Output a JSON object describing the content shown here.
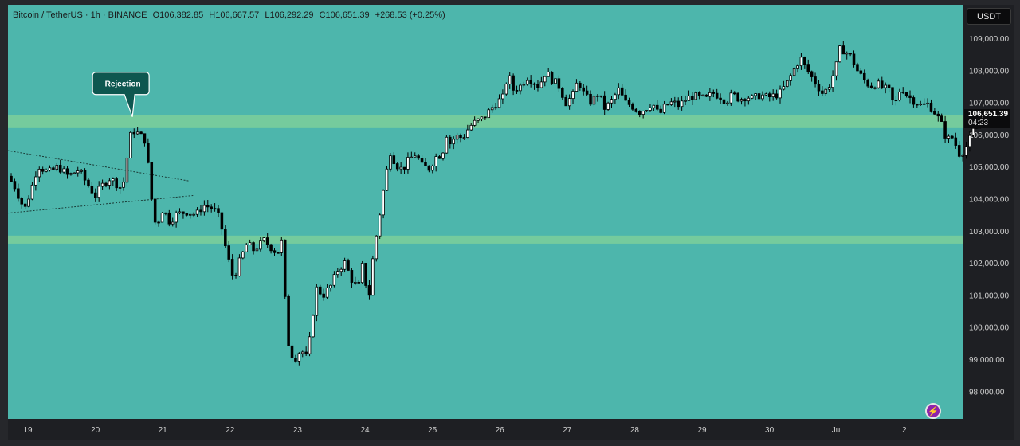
{
  "header": {
    "symbol": "Bitcoin / TetherUS · 1h · BINANCE",
    "open": "O106,382.85",
    "high": "H106,667.57",
    "low": "L106,292.29",
    "close": "C106,651.39",
    "change": "+268.53 (+0.25%)"
  },
  "currency_button": "USDT",
  "current_price": {
    "value": "106,651.39",
    "countdown": "04:23"
  },
  "annotation": {
    "text": "Rejection"
  },
  "colors": {
    "plot_bg": "#4db6ac",
    "zone": "#7ccf9a",
    "candle_up": "#ffffff",
    "candle_down": "#000000",
    "panel": "#1e1f23"
  },
  "chart_data": {
    "type": "candlestick",
    "title": "Bitcoin / TetherUS · 1h · BINANCE",
    "ylim": [
      97500,
      109500
    ],
    "y_ticks": [
      "109,000.00",
      "108,000.00",
      "107,000.00",
      "106,000.00",
      "105,000.00",
      "104,000.00",
      "103,000.00",
      "102,000.00",
      "101,000.00",
      "100,000.00",
      "99,000.00",
      "98,000.00"
    ],
    "y_tick_values": [
      109000,
      108000,
      107000,
      106000,
      105000,
      104000,
      103000,
      102000,
      101000,
      100000,
      99000,
      98000
    ],
    "x_ticks": [
      "19",
      "20",
      "21",
      "22",
      "23",
      "24",
      "25",
      "26",
      "27",
      "28",
      "29",
      "30",
      "Jul",
      "2"
    ],
    "x_tick_days": [
      0,
      1,
      2,
      3,
      4,
      5,
      6,
      7,
      8,
      9,
      10,
      11,
      12,
      13
    ],
    "x_range_days": [
      -0.3,
      13.85
    ],
    "zones": [
      {
        "from": 106200,
        "to": 106600
      },
      {
        "from": 102600,
        "to": 102850
      }
    ],
    "trendlines": [
      {
        "from": [
          -0.3,
          105500
        ],
        "to": [
          2.4,
          104550
        ]
      },
      {
        "from": [
          -0.3,
          103550
        ],
        "to": [
          2.45,
          104100
        ]
      }
    ],
    "annotation_point": [
      1.55,
      106550
    ],
    "path": [
      [
        -0.3,
        104700
      ],
      [
        -0.2,
        104400
      ],
      [
        -0.05,
        103650
      ],
      [
        0.05,
        104300
      ],
      [
        0.15,
        105050
      ],
      [
        0.3,
        104800
      ],
      [
        0.45,
        105000
      ],
      [
        0.6,
        104700
      ],
      [
        0.75,
        104900
      ],
      [
        0.9,
        104400
      ],
      [
        1.0,
        104100
      ],
      [
        1.1,
        104400
      ],
      [
        1.2,
        104650
      ],
      [
        1.3,
        104500
      ],
      [
        1.4,
        104300
      ],
      [
        1.45,
        104900
      ],
      [
        1.5,
        105800
      ],
      [
        1.55,
        106150
      ],
      [
        1.65,
        106000
      ],
      [
        1.75,
        105800
      ],
      [
        1.82,
        104200
      ],
      [
        1.9,
        103100
      ],
      [
        2.0,
        103700
      ],
      [
        2.1,
        103300
      ],
      [
        2.2,
        103500
      ],
      [
        2.35,
        103600
      ],
      [
        2.5,
        103500
      ],
      [
        2.6,
        103800
      ],
      [
        2.75,
        103700
      ],
      [
        2.85,
        103350
      ],
      [
        2.95,
        102300
      ],
      [
        3.05,
        101500
      ],
      [
        3.15,
        102100
      ],
      [
        3.25,
        102600
      ],
      [
        3.35,
        102400
      ],
      [
        3.5,
        102700
      ],
      [
        3.6,
        102500
      ],
      [
        3.7,
        102300
      ],
      [
        3.78,
        102750
      ],
      [
        3.83,
        100000
      ],
      [
        3.88,
        99300
      ],
      [
        3.95,
        99000
      ],
      [
        4.05,
        99300
      ],
      [
        4.15,
        99000
      ],
      [
        4.2,
        100000
      ],
      [
        4.28,
        101200
      ],
      [
        4.38,
        101000
      ],
      [
        4.5,
        101300
      ],
      [
        4.6,
        101800
      ],
      [
        4.7,
        102000
      ],
      [
        4.8,
        101500
      ],
      [
        4.9,
        101200
      ],
      [
        4.97,
        102000
      ],
      [
        5.03,
        101100
      ],
      [
        5.08,
        101000
      ],
      [
        5.12,
        102200
      ],
      [
        5.18,
        103000
      ],
      [
        5.24,
        103800
      ],
      [
        5.3,
        104600
      ],
      [
        5.38,
        105500
      ],
      [
        5.45,
        105100
      ],
      [
        5.55,
        104900
      ],
      [
        5.65,
        105200
      ],
      [
        5.75,
        105400
      ],
      [
        5.85,
        105000
      ],
      [
        5.95,
        104950
      ],
      [
        6.05,
        105300
      ],
      [
        6.15,
        105400
      ],
      [
        6.2,
        106100
      ],
      [
        6.25,
        105700
      ],
      [
        6.35,
        105950
      ],
      [
        6.45,
        105900
      ],
      [
        6.55,
        106250
      ],
      [
        6.65,
        106400
      ],
      [
        6.75,
        106500
      ],
      [
        6.85,
        106750
      ],
      [
        6.95,
        107000
      ],
      [
        7.05,
        107150
      ],
      [
        7.12,
        107900
      ],
      [
        7.2,
        107400
      ],
      [
        7.3,
        107500
      ],
      [
        7.4,
        107800
      ],
      [
        7.5,
        107650
      ],
      [
        7.58,
        107500
      ],
      [
        7.68,
        107950
      ],
      [
        7.78,
        107700
      ],
      [
        7.88,
        107500
      ],
      [
        7.98,
        107000
      ],
      [
        8.08,
        107200
      ],
      [
        8.16,
        107700
      ],
      [
        8.26,
        107200
      ],
      [
        8.36,
        107000
      ],
      [
        8.46,
        107300
      ],
      [
        8.56,
        106800
      ],
      [
        8.66,
        107050
      ],
      [
        8.76,
        107400
      ],
      [
        8.86,
        107000
      ],
      [
        8.96,
        106900
      ],
      [
        9.06,
        106700
      ],
      [
        9.16,
        106800
      ],
      [
        9.26,
        107000
      ],
      [
        9.36,
        106600
      ],
      [
        9.46,
        106900
      ],
      [
        9.56,
        107000
      ],
      [
        9.66,
        106900
      ],
      [
        9.76,
        107100
      ],
      [
        9.86,
        107200
      ],
      [
        9.96,
        107150
      ],
      [
        10.06,
        107100
      ],
      [
        10.16,
        107300
      ],
      [
        10.26,
        107200
      ],
      [
        10.36,
        107050
      ],
      [
        10.46,
        107250
      ],
      [
        10.56,
        107100
      ],
      [
        10.66,
        107200
      ],
      [
        10.76,
        107100
      ],
      [
        10.86,
        107250
      ],
      [
        10.96,
        107150
      ],
      [
        11.06,
        107200
      ],
      [
        11.16,
        107300
      ],
      [
        11.26,
        107600
      ],
      [
        11.36,
        108000
      ],
      [
        11.46,
        108400
      ],
      [
        11.52,
        108150
      ],
      [
        11.62,
        107800
      ],
      [
        11.72,
        107500
      ],
      [
        11.8,
        107250
      ],
      [
        11.9,
        107600
      ],
      [
        12.0,
        108200
      ],
      [
        12.05,
        108700
      ],
      [
        12.12,
        108600
      ],
      [
        12.22,
        108400
      ],
      [
        12.3,
        108000
      ],
      [
        12.4,
        107700
      ],
      [
        12.5,
        107500
      ],
      [
        12.58,
        107600
      ],
      [
        12.68,
        107450
      ],
      [
        12.78,
        107350
      ],
      [
        12.85,
        106850
      ],
      [
        12.95,
        107500
      ],
      [
        13.05,
        107200
      ],
      [
        13.15,
        107050
      ],
      [
        13.25,
        106900
      ],
      [
        13.35,
        106950
      ],
      [
        13.45,
        106700
      ],
      [
        13.52,
        106450
      ],
      [
        13.58,
        106200
      ],
      [
        13.63,
        105800
      ],
      [
        13.7,
        105950
      ],
      [
        13.76,
        105700
      ],
      [
        13.8,
        105400
      ],
      [
        13.86,
        105450
      ],
      [
        13.94,
        105700
      ],
      [
        14.02,
        106100
      ],
      [
        14.1,
        106382.85
      ],
      [
        14.16,
        106651.39
      ]
    ]
  }
}
